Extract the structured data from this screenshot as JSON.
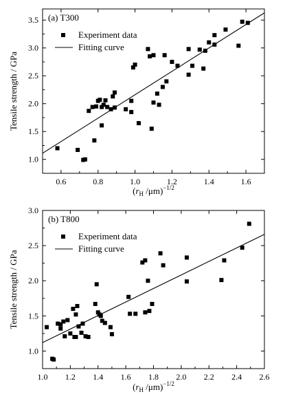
{
  "chart_data": [
    {
      "type": "scatter",
      "panel_label": "(a)  T300",
      "xlabel": "(r_H / μm)^-1/2",
      "xlabel_parts": {
        "open": "(",
        "var": "r",
        "sub": "H",
        "rest": " /μm)",
        "sup": "−1/2"
      },
      "ylabel": "Tensile strength / GPa",
      "xlim": [
        0.5,
        1.7
      ],
      "ylim": [
        0.75,
        3.7
      ],
      "xticks": [
        0.6,
        0.8,
        1.0,
        1.2,
        1.4,
        1.6
      ],
      "xtick_labels": [
        "0.6",
        "0.8",
        "1.0",
        "1.2",
        "1.4",
        "1.6"
      ],
      "yticks": [
        1.0,
        1.5,
        2.0,
        2.5,
        3.0,
        3.5
      ],
      "ytick_labels": [
        "1.0",
        "1.5",
        "2.0",
        "2.5",
        "3.0",
        "3.5"
      ],
      "legend": {
        "position": "top-left",
        "entries": [
          "Experiment data",
          "Fitting curve"
        ]
      },
      "grid": false,
      "series": [
        {
          "name": "Experiment data",
          "x": [
            0.58,
            0.69,
            0.72,
            0.73,
            0.75,
            0.77,
            0.78,
            0.79,
            0.8,
            0.81,
            0.82,
            0.82,
            0.83,
            0.84,
            0.85,
            0.87,
            0.88,
            0.89,
            0.89,
            0.95,
            0.98,
            0.98,
            0.99,
            1.0,
            1.02,
            1.07,
            1.08,
            1.09,
            1.1,
            1.1,
            1.12,
            1.13,
            1.15,
            1.16,
            1.17,
            1.2,
            1.23,
            1.29,
            1.29,
            1.31,
            1.35,
            1.37,
            1.38,
            1.4,
            1.43,
            1.43,
            1.49,
            1.56,
            1.58,
            1.61
          ],
          "y": [
            1.2,
            1.17,
            0.99,
            1.0,
            1.87,
            1.94,
            1.34,
            1.95,
            2.05,
            2.07,
            1.94,
            1.61,
            1.98,
            2.06,
            1.94,
            1.9,
            2.13,
            2.2,
            1.93,
            1.9,
            1.85,
            2.05,
            2.65,
            2.7,
            1.65,
            2.98,
            2.85,
            1.55,
            2.02,
            2.87,
            2.18,
            1.98,
            2.3,
            2.87,
            2.4,
            2.75,
            2.68,
            2.98,
            2.52,
            2.68,
            2.97,
            2.63,
            2.95,
            3.1,
            3.06,
            3.23,
            3.33,
            3.04,
            3.47,
            3.45
          ]
        },
        {
          "name": "Fitting curve",
          "kind": "line",
          "x": [
            0.5,
            1.7
          ],
          "y": [
            1.11,
            3.63
          ]
        }
      ]
    },
    {
      "type": "scatter",
      "panel_label": "(b)  T800",
      "xlabel": "(r_H / μm)^-1/2",
      "xlabel_parts": {
        "open": "(",
        "var": "r",
        "sub": "H",
        "rest": " /μm)",
        "sup": "−1/2"
      },
      "ylabel": "Tensile strength / GPa",
      "xlim": [
        1.0,
        2.6
      ],
      "ylim": [
        0.75,
        3.0
      ],
      "xticks": [
        1.0,
        1.2,
        1.4,
        1.6,
        1.8,
        2.0,
        2.2,
        2.4,
        2.6
      ],
      "xtick_labels": [
        "1.0",
        "1.2",
        "1.4",
        "1.6",
        "1.8",
        "2.0",
        "2.2",
        "2.4",
        "2.6"
      ],
      "yticks": [
        1.0,
        1.5,
        2.0,
        2.5,
        3.0
      ],
      "ytick_labels": [
        "1.0",
        "1.5",
        "2.0",
        "2.5",
        "3.0"
      ],
      "legend": {
        "position": "top-left",
        "entries": [
          "Experiment data",
          "Fitting curve"
        ]
      },
      "grid": false,
      "series": [
        {
          "name": "Experiment data",
          "x": [
            1.03,
            1.07,
            1.08,
            1.11,
            1.13,
            1.13,
            1.15,
            1.16,
            1.18,
            1.2,
            1.22,
            1.23,
            1.24,
            1.24,
            1.25,
            1.26,
            1.28,
            1.29,
            1.31,
            1.33,
            1.38,
            1.39,
            1.4,
            1.41,
            1.42,
            1.43,
            1.45,
            1.49,
            1.5,
            1.62,
            1.63,
            1.67,
            1.72,
            1.74,
            1.74,
            1.76,
            1.77,
            1.79,
            1.85,
            1.87,
            2.04,
            2.04,
            2.29,
            2.31,
            2.44,
            2.49
          ],
          "y": [
            1.34,
            0.89,
            0.88,
            1.39,
            1.38,
            1.32,
            1.42,
            1.21,
            1.44,
            1.25,
            1.6,
            1.2,
            1.2,
            1.52,
            1.64,
            1.35,
            1.26,
            1.39,
            1.21,
            1.2,
            1.67,
            1.95,
            1.55,
            1.52,
            1.5,
            1.43,
            1.4,
            1.34,
            1.24,
            1.77,
            1.53,
            1.53,
            2.26,
            2.29,
            1.55,
            2.0,
            1.57,
            1.67,
            2.39,
            2.22,
            1.99,
            2.33,
            2.01,
            2.29,
            2.47,
            2.81
          ]
        },
        {
          "name": "Fitting curve",
          "kind": "line",
          "x": [
            1.0,
            2.6
          ],
          "y": [
            1.12,
            2.66
          ]
        }
      ]
    }
  ]
}
